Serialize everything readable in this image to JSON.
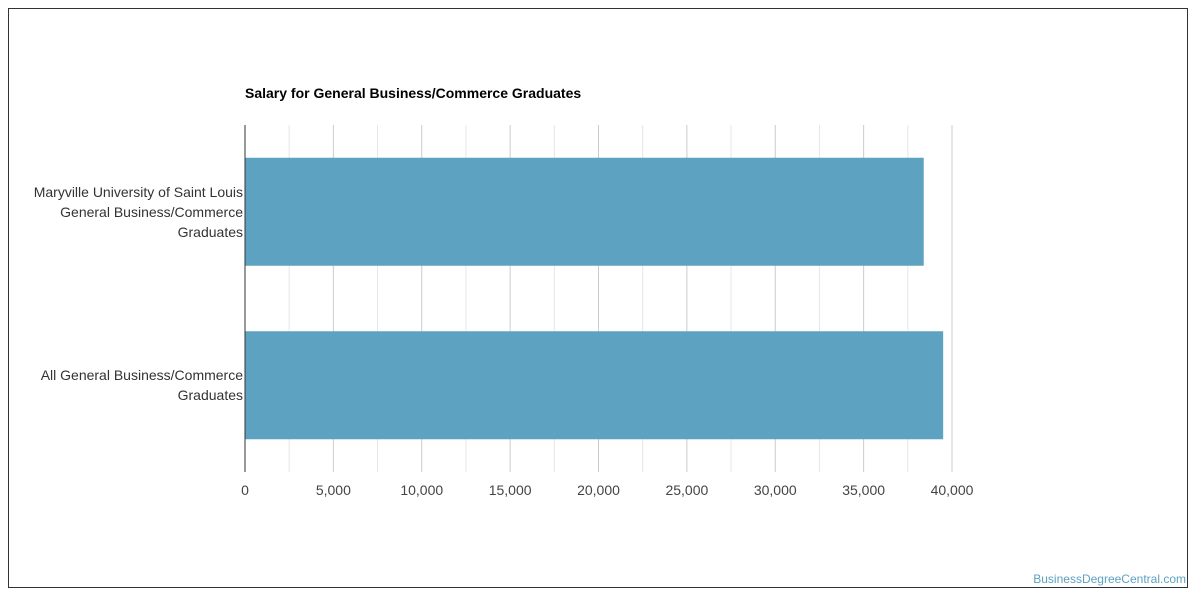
{
  "chart_data": {
    "type": "bar",
    "orientation": "horizontal",
    "title": "Salary for General Business/Commerce Graduates",
    "categories": [
      "Maryville University of Saint Louis\nGeneral Business/Commerce\nGraduates",
      "All General Business/Commerce\nGraduates"
    ],
    "values": [
      38400,
      39500
    ],
    "xlim": [
      0,
      40000
    ],
    "ticks": [
      0,
      5000,
      10000,
      15000,
      20000,
      25000,
      30000,
      35000,
      40000
    ],
    "tick_labels": [
      "0",
      "5,000",
      "10,000",
      "15,000",
      "20,000",
      "25,000",
      "30,000",
      "35,000",
      "40,000"
    ],
    "grid": true,
    "bar_color": "#5da2c0"
  },
  "watermark": "BusinessDegreeCentral.com"
}
